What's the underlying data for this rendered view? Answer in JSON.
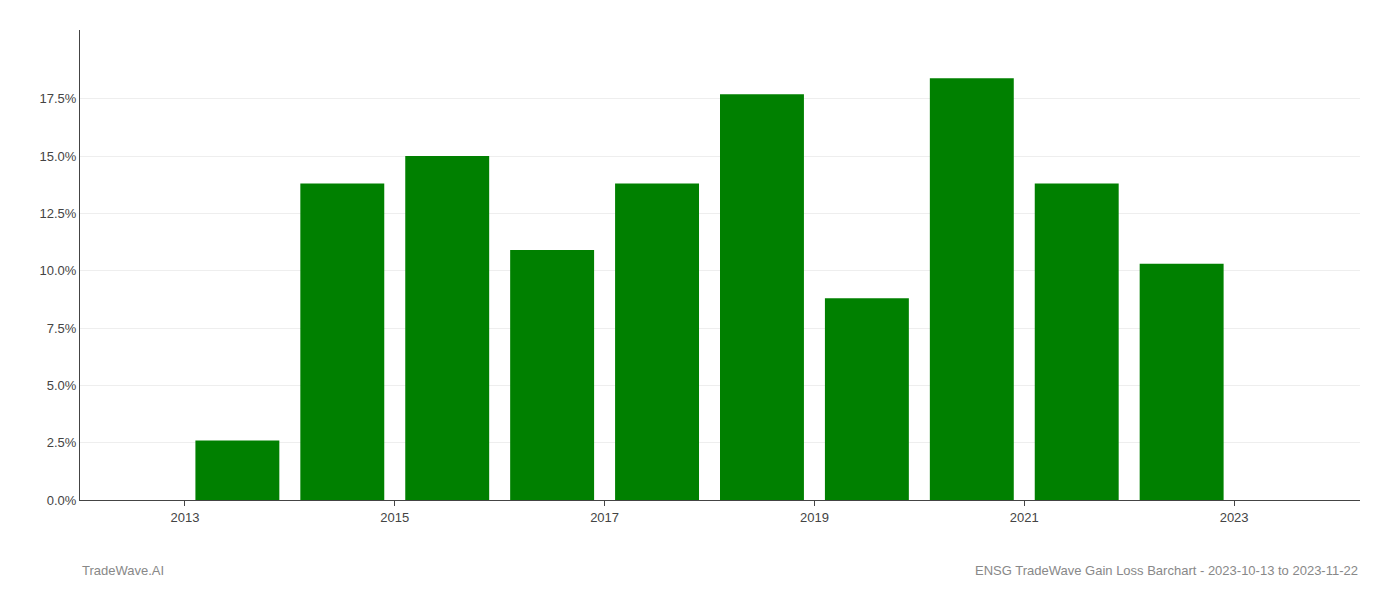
{
  "chart_data": {
    "type": "bar",
    "x": [
      2013,
      2014,
      2015,
      2016,
      2017,
      2018,
      2019,
      2020,
      2021,
      2022
    ],
    "values": [
      0.026,
      0.138,
      0.15,
      0.109,
      0.138,
      0.177,
      0.088,
      0.184,
      0.138,
      0.103
    ],
    "color": "#008000",
    "xlim": [
      2012.0,
      2024.2
    ],
    "xticks": [
      2013,
      2015,
      2017,
      2019,
      2021,
      2023
    ],
    "ylim": [
      0,
      0.205
    ],
    "yticks": [
      {
        "value": 0.0,
        "label": "0.0%"
      },
      {
        "value": 0.025,
        "label": "2.5%"
      },
      {
        "value": 0.05,
        "label": "5.0%"
      },
      {
        "value": 0.075,
        "label": "7.5%"
      },
      {
        "value": 0.1,
        "label": "10.0%"
      },
      {
        "value": 0.125,
        "label": "12.5%"
      },
      {
        "value": 0.15,
        "label": "15.0%"
      },
      {
        "value": 0.175,
        "label": "17.5%"
      }
    ],
    "grid": true,
    "annotations": [
      "TradeWave.AI",
      "ENSG TradeWave Gain Loss Barchart - 2023-10-13 to 2023-11-22"
    ]
  }
}
